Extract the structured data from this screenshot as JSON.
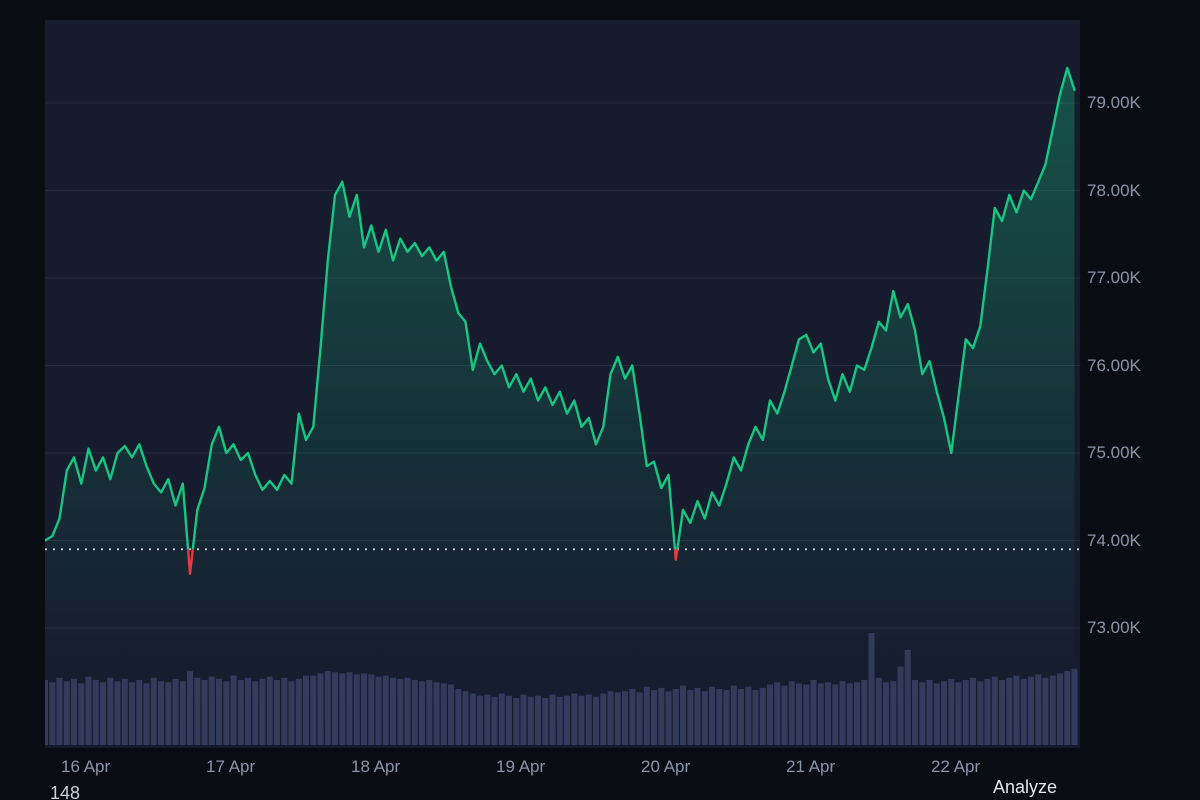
{
  "colors": {
    "outer_bg": "#0a0c14",
    "plot_bg": "#161b2d",
    "grid": "#262c3f",
    "line_up": "#16c784",
    "line_down": "#ea3943",
    "volume": "#333b5c",
    "baseline": "#dde1ea",
    "axis_text": "#8b93a7"
  },
  "chart_data": {
    "type": "area",
    "title": "",
    "x_unit": "days since 16 Apr 00:00",
    "y_unit": "price (thousands)",
    "baseline_k": 73.9,
    "ylim_k": [
      71.63,
      79.95
    ],
    "t_start": 0,
    "t_step": 0.05,
    "y_ticks": [
      {
        "label": "79.00K",
        "value": 79
      },
      {
        "label": "78.00K",
        "value": 78
      },
      {
        "label": "77.00K",
        "value": 77
      },
      {
        "label": "76.00K",
        "value": 76
      },
      {
        "label": "75.00K",
        "value": 75
      },
      {
        "label": "74.00K",
        "value": 74
      },
      {
        "label": "73.00K",
        "value": 73
      }
    ],
    "x_ticks": [
      {
        "label": "16 Apr",
        "t": 0.28
      },
      {
        "label": "17 Apr",
        "t": 1.28
      },
      {
        "label": "18 Apr",
        "t": 2.28
      },
      {
        "label": "19 Apr",
        "t": 3.28
      },
      {
        "label": "20 Apr",
        "t": 4.28
      },
      {
        "label": "21 Apr",
        "t": 5.28
      },
      {
        "label": "22 Apr",
        "t": 6.28
      }
    ],
    "price_k": [
      74.0,
      74.05,
      74.25,
      74.8,
      74.95,
      74.65,
      75.05,
      74.8,
      74.95,
      74.7,
      75.0,
      75.08,
      74.95,
      75.1,
      74.85,
      74.65,
      74.55,
      74.7,
      74.4,
      74.65,
      73.62,
      74.35,
      74.6,
      75.1,
      75.3,
      75.0,
      75.1,
      74.92,
      75.0,
      74.75,
      74.58,
      74.68,
      74.58,
      74.75,
      74.65,
      75.45,
      75.15,
      75.3,
      76.2,
      77.2,
      77.95,
      78.1,
      77.7,
      77.95,
      77.35,
      77.6,
      77.3,
      77.55,
      77.2,
      77.45,
      77.3,
      77.4,
      77.25,
      77.35,
      77.2,
      77.3,
      76.9,
      76.6,
      76.5,
      75.95,
      76.25,
      76.05,
      75.9,
      76.0,
      75.75,
      75.9,
      75.7,
      75.85,
      75.6,
      75.75,
      75.55,
      75.7,
      75.45,
      75.6,
      75.3,
      75.4,
      75.1,
      75.3,
      75.9,
      76.1,
      75.85,
      76.0,
      75.45,
      74.85,
      74.9,
      74.6,
      74.75,
      73.78,
      74.35,
      74.2,
      74.45,
      74.25,
      74.55,
      74.4,
      74.65,
      74.95,
      74.8,
      75.1,
      75.3,
      75.15,
      75.6,
      75.45,
      75.7,
      76.0,
      76.3,
      76.35,
      76.15,
      76.25,
      75.85,
      75.6,
      75.9,
      75.7,
      76.0,
      75.95,
      76.2,
      76.5,
      76.4,
      76.85,
      76.55,
      76.7,
      76.4,
      75.9,
      76.05,
      75.7,
      75.4,
      75.0,
      75.65,
      76.3,
      76.2,
      76.45,
      77.1,
      77.8,
      77.65,
      77.95,
      77.75,
      78.0,
      77.9,
      78.1,
      78.3,
      78.7,
      79.1,
      79.4,
      79.15
    ],
    "volume": [
      58,
      56,
      60,
      57,
      59,
      55,
      61,
      58,
      56,
      60,
      57,
      59,
      56,
      58,
      55,
      60,
      57,
      56,
      59,
      57,
      66,
      60,
      58,
      61,
      59,
      57,
      62,
      58,
      60,
      57,
      59,
      61,
      58,
      60,
      57,
      59,
      62,
      62,
      64,
      66,
      65,
      64,
      65,
      63,
      64,
      63,
      61,
      62,
      60,
      59,
      60,
      58,
      57,
      58,
      56,
      55,
      54,
      50,
      48,
      46,
      44,
      45,
      43,
      46,
      44,
      42,
      45,
      43,
      44,
      42,
      45,
      43,
      44,
      46,
      44,
      45,
      43,
      46,
      48,
      47,
      48,
      50,
      47,
      52,
      49,
      51,
      48,
      50,
      53,
      49,
      51,
      48,
      52,
      50,
      49,
      53,
      50,
      52,
      49,
      51,
      54,
      56,
      53,
      57,
      55,
      54,
      58,
      55,
      56,
      54,
      57,
      55,
      56,
      58,
      100,
      60,
      56,
      57,
      70,
      85,
      58,
      56,
      58,
      55,
      57,
      59,
      56,
      58,
      60,
      57,
      59,
      61,
      58,
      60,
      62,
      59,
      61,
      63,
      60,
      62,
      64,
      66,
      68
    ]
  },
  "footer": {
    "left_text": "148",
    "analyze_label": "Analyze"
  }
}
